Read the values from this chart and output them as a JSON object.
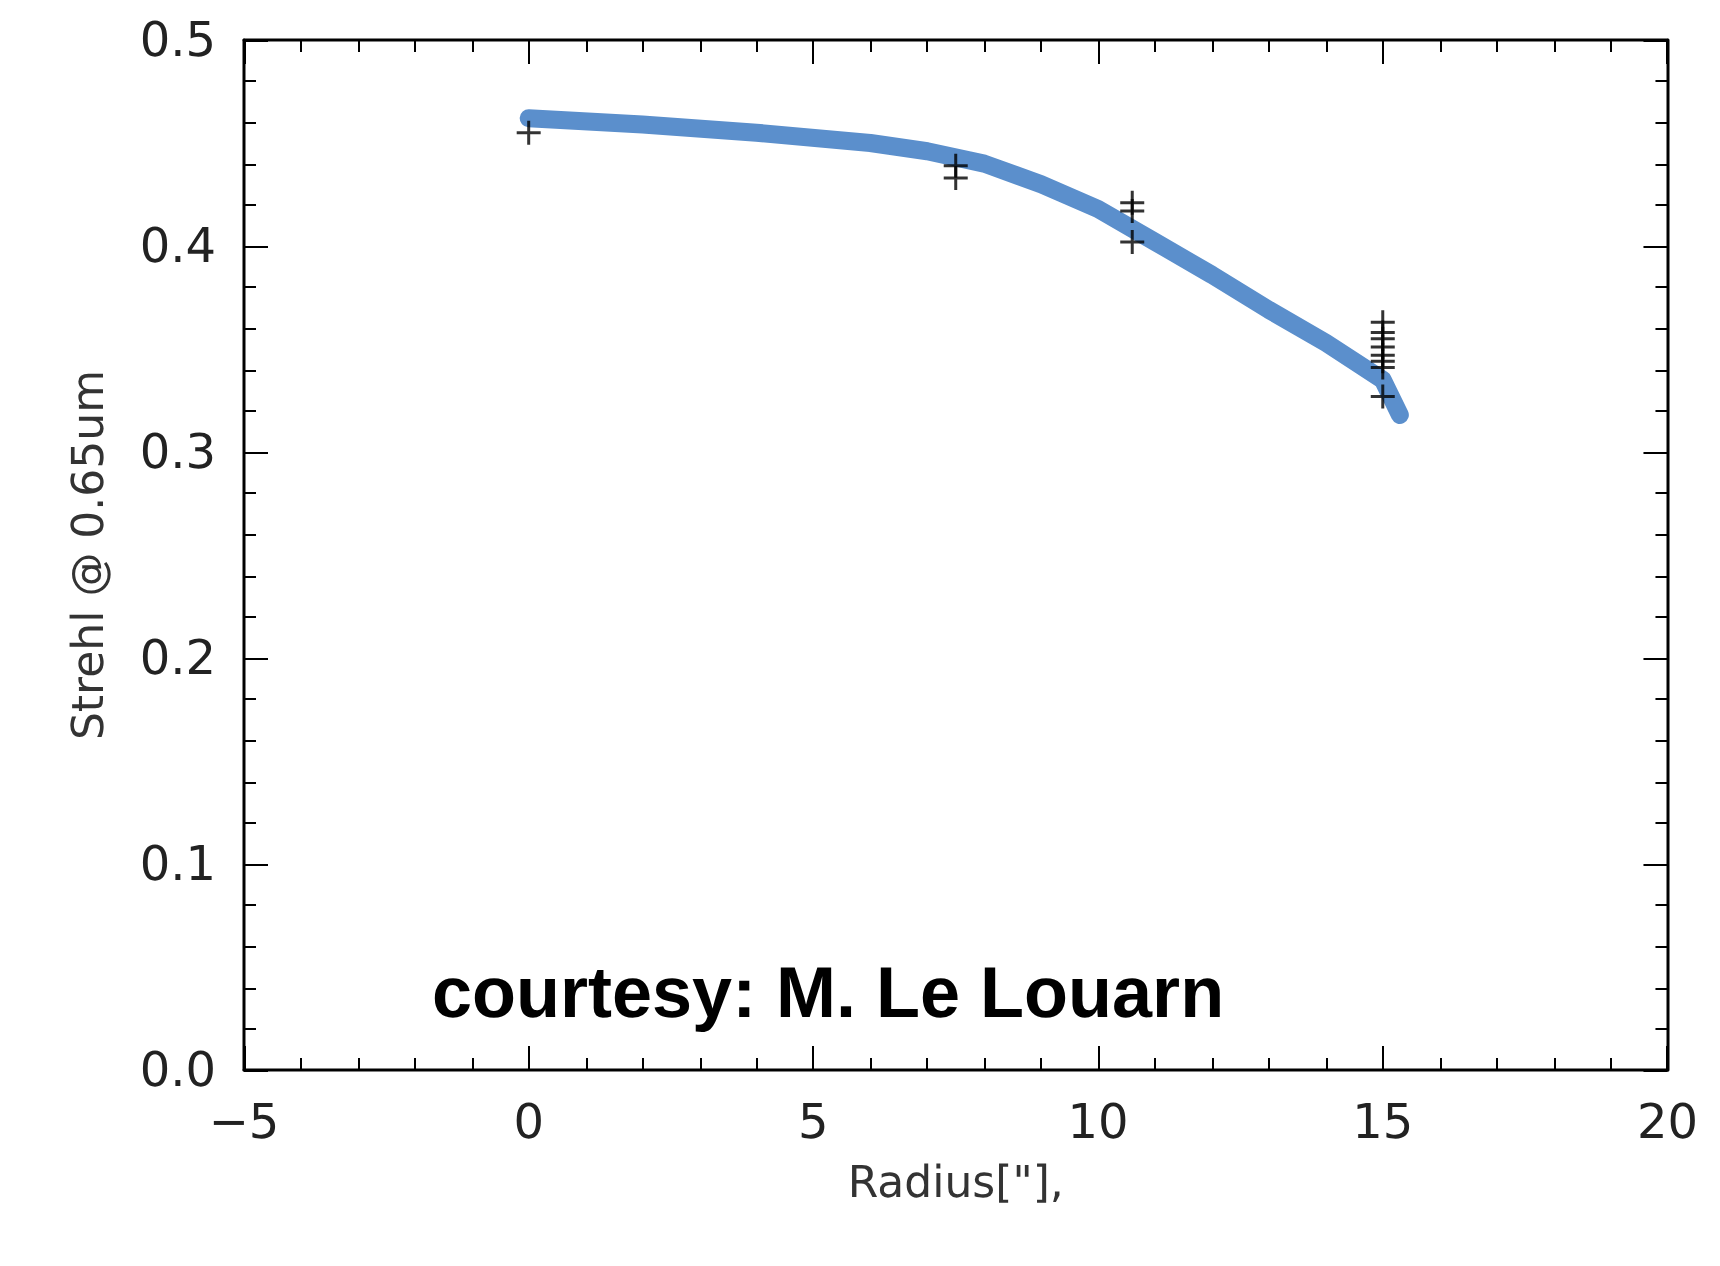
{
  "chart_data": {
    "type": "scatter",
    "xlabel": "Radius[\"],",
    "ylabel": "Strehl @ 0.65um",
    "xlim": [
      -5,
      20
    ],
    "xticks": [
      {
        "value": -5,
        "label": "−5"
      },
      0,
      5,
      10,
      15,
      20
    ],
    "ylim": [
      0,
      0.5
    ],
    "yticks": [
      {
        "value": 0,
        "label": "0.0"
      },
      {
        "value": 0.1,
        "label": "0.1"
      },
      {
        "value": 0.2,
        "label": "0.2"
      },
      {
        "value": 0.3,
        "label": "0.3"
      },
      {
        "value": 0.4,
        "label": "0.4"
      },
      {
        "value": 0.5,
        "label": "0.5"
      }
    ],
    "grid": false,
    "marker": "cross",
    "series": [
      {
        "color": "#000000",
        "x": [
          0,
          7.5,
          7.5,
          10.6,
          10.6,
          10.6,
          15,
          15,
          15,
          15,
          15,
          15,
          15,
          15
        ],
        "values": [
          0.455,
          0.433,
          0.439,
          0.421,
          0.417,
          0.402,
          0.363,
          0.358,
          0.355,
          0.351,
          0.347,
          0.344,
          0.341,
          0.327
        ]
      },
      {
        "type": "line",
        "color": "#5b8fcc",
        "marker": "none",
        "x": [
          0,
          2,
          4,
          6,
          7,
          8,
          9,
          10,
          11,
          12,
          13,
          14,
          15,
          15.3
        ],
        "values": [
          0.462,
          0.459,
          0.455,
          0.45,
          0.446,
          0.44,
          0.43,
          0.418,
          0.402,
          0.386,
          0.369,
          0.353,
          0.335,
          0.318
        ]
      }
    ],
    "annotations": [
      "courtesy: M. Le Louarn"
    ]
  }
}
